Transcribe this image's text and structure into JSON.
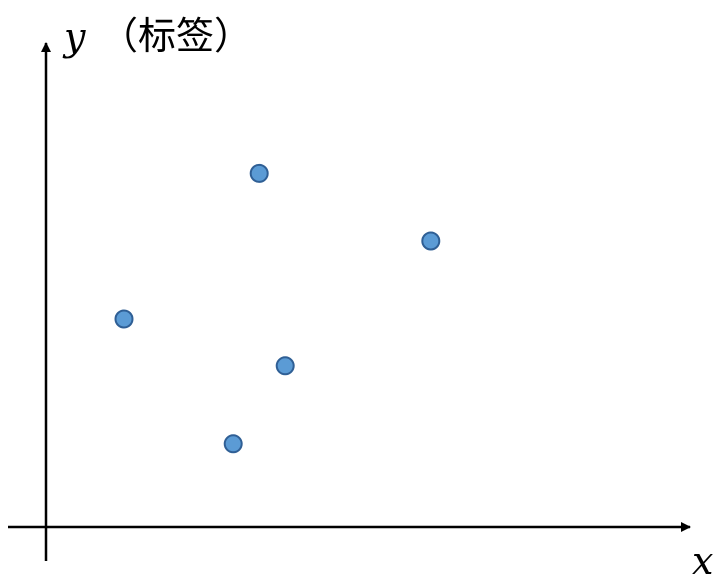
{
  "chart_data": {
    "type": "scatter",
    "xlabel": "x",
    "ylabel": "y",
    "ylabel_note": "（标签）",
    "x": [
      1.5,
      3.6,
      4.1,
      4.6,
      7.4
    ],
    "y": [
      4.0,
      1.6,
      6.8,
      3.1,
      5.5
    ],
    "xlim": [
      -0.5,
      9.5
    ],
    "ylim": [
      -0.5,
      9.0
    ],
    "grid": false,
    "point_color": "#5b9bd5"
  }
}
